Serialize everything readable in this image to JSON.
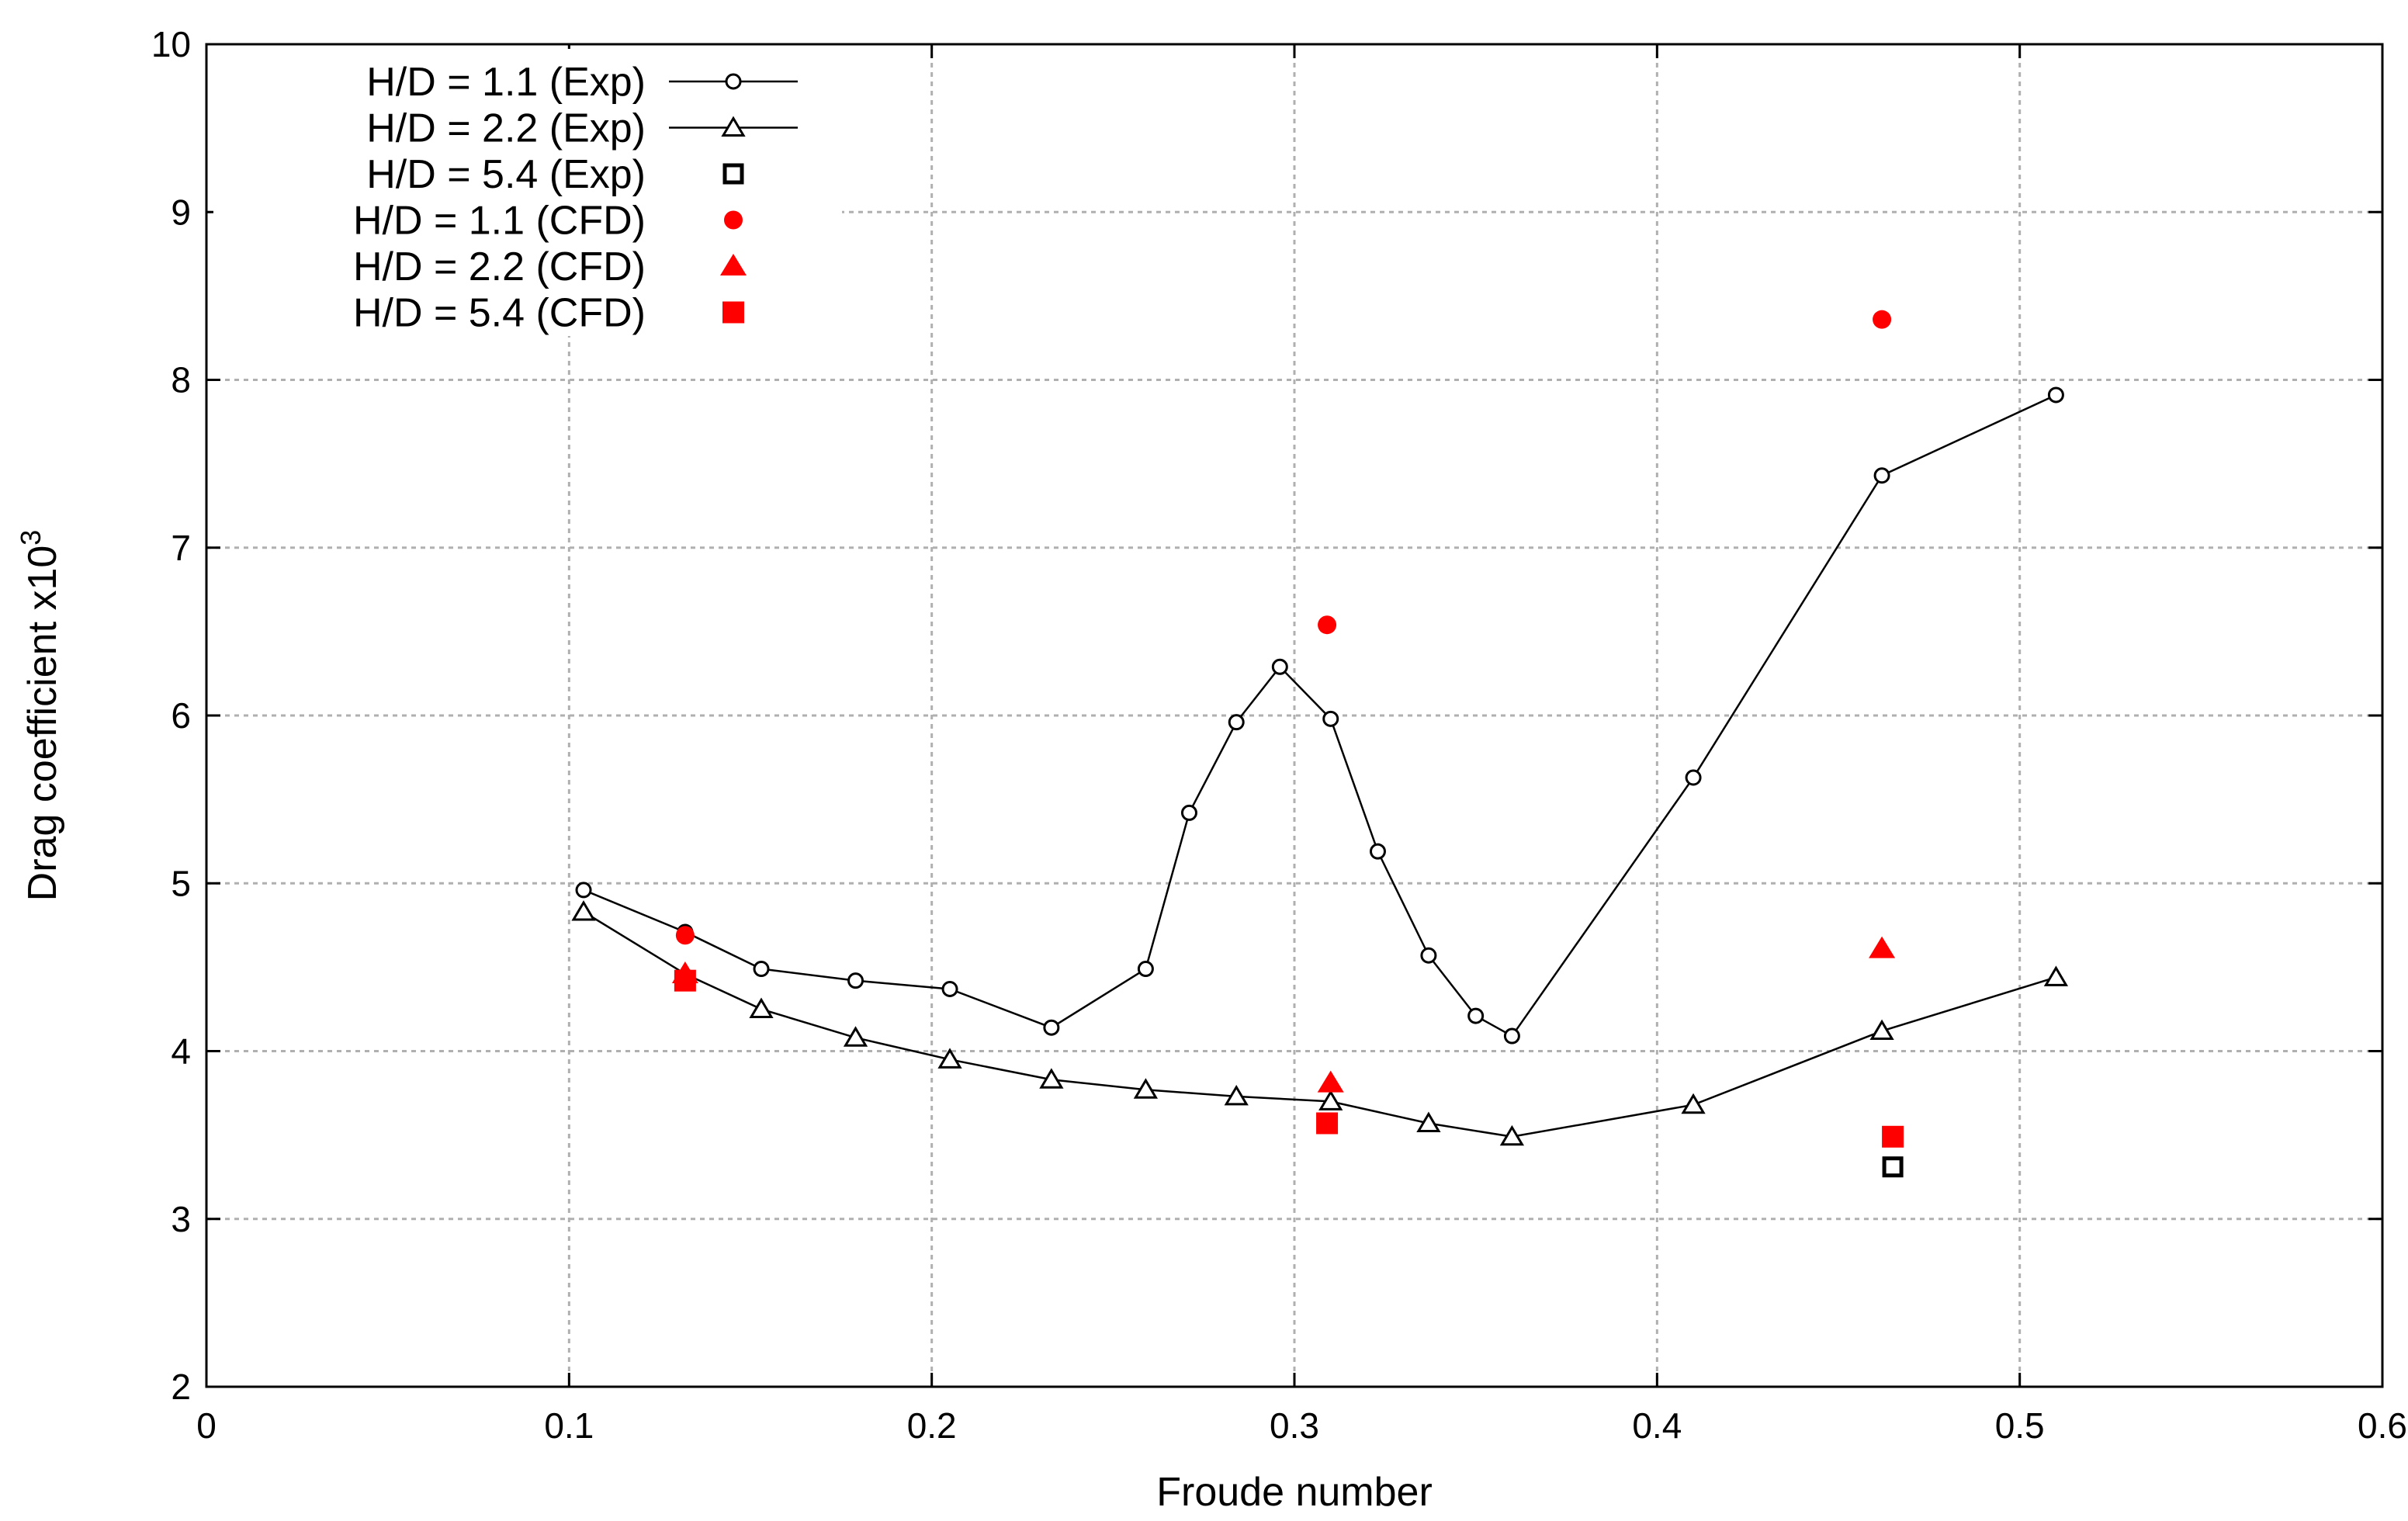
{
  "chart_data": {
    "type": "line",
    "title": "",
    "xlabel": "Froude number",
    "ylabel_prefix": "Drag coefficient x10",
    "ylabel_superscript": "3",
    "xlim": [
      0,
      0.6
    ],
    "ylim": [
      2,
      10
    ],
    "xticks": [
      0,
      0.1,
      0.2,
      0.3,
      0.4,
      0.5,
      0.6
    ],
    "xtick_labels": [
      "0",
      "0.1",
      "0.2",
      "0.3",
      "0.4",
      "0.5",
      "0.6"
    ],
    "yticks": [
      2,
      3,
      4,
      5,
      6,
      7,
      8,
      9,
      10
    ],
    "ytick_labels": [
      "2",
      "3",
      "4",
      "5",
      "6",
      "7",
      "8",
      "9",
      "10"
    ],
    "grid": true,
    "legend_position": "top-left",
    "series": [
      {
        "name": "H/D = 1.1 (Exp)",
        "style": "line",
        "marker": "open-circle",
        "color": "#000000",
        "x": [
          0.104,
          0.132,
          0.153,
          0.179,
          0.205,
          0.233,
          0.259,
          0.271,
          0.284,
          0.296,
          0.31,
          0.323,
          0.337,
          0.35,
          0.36,
          0.41,
          0.462,
          0.51
        ],
        "y": [
          4.96,
          4.71,
          4.49,
          4.42,
          4.37,
          4.14,
          4.49,
          5.42,
          5.96,
          6.29,
          5.98,
          5.19,
          4.57,
          4.21,
          4.09,
          5.63,
          7.43,
          7.91
        ]
      },
      {
        "name": "H/D = 2.2 (Exp)",
        "style": "line",
        "marker": "open-triangle",
        "color": "#000000",
        "x": [
          0.104,
          0.132,
          0.153,
          0.179,
          0.205,
          0.233,
          0.259,
          0.284,
          0.31,
          0.337,
          0.36,
          0.41,
          0.462,
          0.51
        ],
        "y": [
          4.83,
          4.46,
          4.25,
          4.08,
          3.95,
          3.83,
          3.77,
          3.73,
          3.7,
          3.57,
          3.49,
          3.68,
          4.12,
          4.44
        ]
      },
      {
        "name": "H/D = 5.4 (Exp)",
        "style": "points",
        "marker": "open-square",
        "color": "#000000",
        "x": [
          0.465
        ],
        "y": [
          3.31
        ]
      },
      {
        "name": "H/D = 1.1 (CFD)",
        "style": "points",
        "marker": "filled-circle",
        "color": "#ff0000",
        "x": [
          0.132,
          0.309,
          0.462
        ],
        "y": [
          4.69,
          6.54,
          8.36
        ]
      },
      {
        "name": "H/D = 2.2 (CFD)",
        "style": "points",
        "marker": "filled-triangle",
        "color": "#ff0000",
        "x": [
          0.132,
          0.31,
          0.462
        ],
        "y": [
          4.46,
          3.81,
          4.61
        ]
      },
      {
        "name": "H/D = 5.4 (CFD)",
        "style": "points",
        "marker": "filled-square",
        "color": "#ff0000",
        "x": [
          0.132,
          0.309,
          0.465
        ],
        "y": [
          4.42,
          3.57,
          3.49
        ]
      }
    ]
  }
}
